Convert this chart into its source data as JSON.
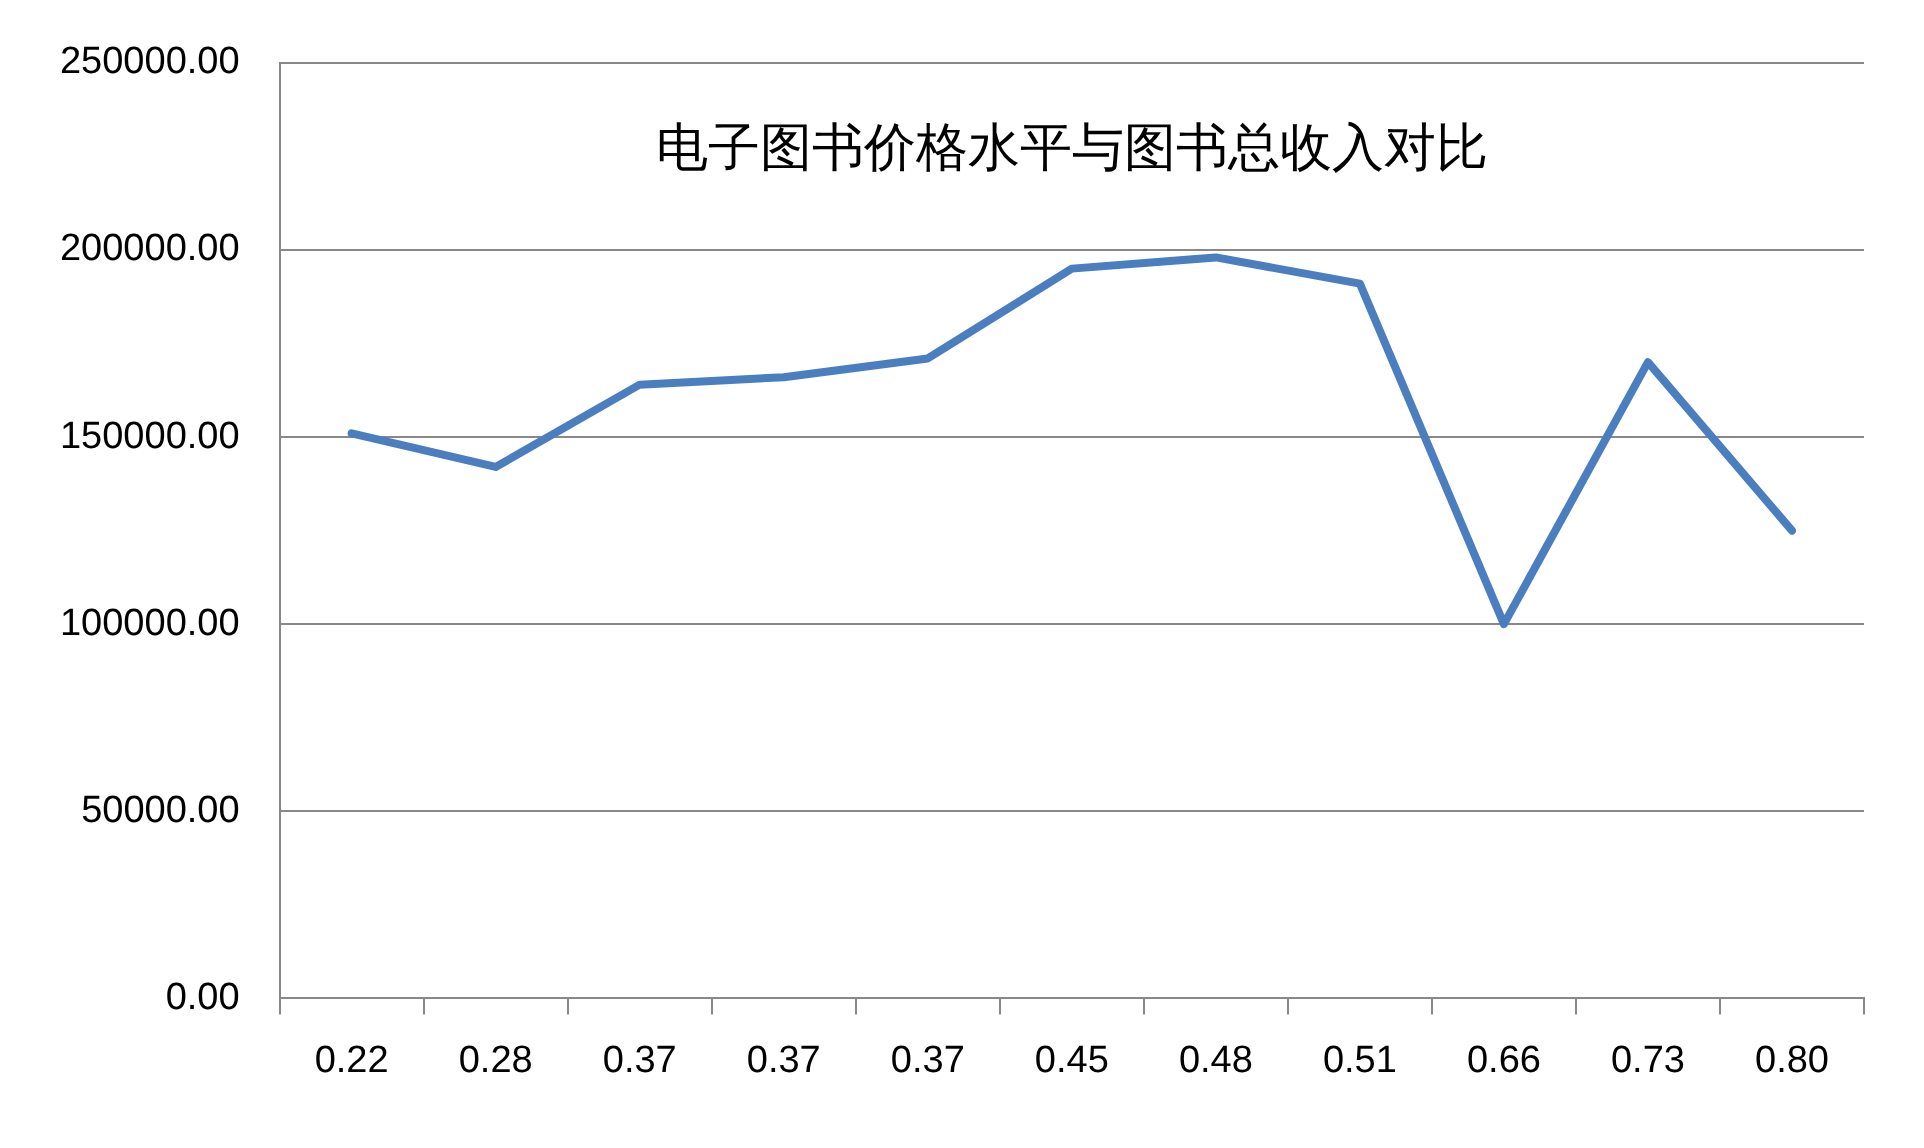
{
  "chart_data": {
    "type": "line",
    "title": "电子图书价格水平与图书总收入对比",
    "categories": [
      "0.22",
      "0.28",
      "0.37",
      "0.37",
      "0.37",
      "0.45",
      "0.48",
      "0.51",
      "0.66",
      "0.73",
      "0.80"
    ],
    "series": [
      {
        "color": "#4a7ebf",
        "values": [
          151000,
          142000,
          164000,
          166000,
          171000,
          195000,
          198000,
          191000,
          100000,
          170000,
          125000
        ]
      }
    ],
    "ylim": [
      0,
      250000
    ],
    "yticks": [
      {
        "value": 0,
        "label": "0.00"
      },
      {
        "value": 50000,
        "label": "50000.00"
      },
      {
        "value": 100000,
        "label": "100000.00"
      },
      {
        "value": 150000,
        "label": "150000.00"
      },
      {
        "value": 200000,
        "label": "200000.00"
      },
      {
        "value": 250000,
        "label": "250000.00"
      }
    ],
    "grid": "y",
    "legend": false,
    "marker": "none",
    "line_style": "solid"
  }
}
